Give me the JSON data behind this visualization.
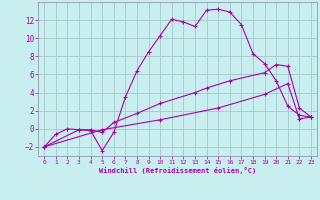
{
  "xlabel": "Windchill (Refroidissement éolien,°C)",
  "bg_color": "#c8eef0",
  "grid_color": "#aacccc",
  "line_color": "#aa00aa",
  "spine_color": "#8888aa",
  "xlim": [
    -0.5,
    23.5
  ],
  "ylim": [
    -3.0,
    14.0
  ],
  "xticks": [
    0,
    1,
    2,
    3,
    4,
    5,
    6,
    7,
    8,
    9,
    10,
    11,
    12,
    13,
    14,
    15,
    16,
    17,
    18,
    19,
    20,
    21,
    22,
    23
  ],
  "yticks": [
    -2,
    0,
    2,
    4,
    6,
    8,
    10,
    12
  ],
  "line1_x": [
    0,
    1,
    2,
    3,
    4,
    5,
    6,
    7,
    8,
    9,
    10,
    11,
    12,
    13,
    14,
    15,
    16,
    17,
    18,
    19,
    20,
    21,
    22,
    23
  ],
  "line1_y": [
    -2.0,
    -0.6,
    0.0,
    -0.1,
    -0.2,
    -2.4,
    -0.4,
    3.5,
    6.4,
    8.5,
    10.3,
    12.1,
    11.8,
    11.3,
    13.1,
    13.2,
    12.9,
    11.5,
    8.3,
    7.2,
    5.3,
    2.5,
    1.5,
    1.3
  ],
  "line2_x": [
    0,
    3,
    4,
    5,
    6,
    8,
    10,
    13,
    14,
    16,
    19,
    20,
    21,
    22,
    23
  ],
  "line2_y": [
    -2.0,
    -0.1,
    -0.1,
    -0.4,
    0.7,
    1.7,
    2.8,
    4.0,
    4.5,
    5.3,
    6.2,
    7.1,
    6.9,
    2.3,
    1.3
  ],
  "line3_x": [
    0,
    5,
    10,
    15,
    19,
    21,
    22,
    23
  ],
  "line3_y": [
    -2.0,
    -0.1,
    1.0,
    2.3,
    3.8,
    5.0,
    1.1,
    1.3
  ]
}
